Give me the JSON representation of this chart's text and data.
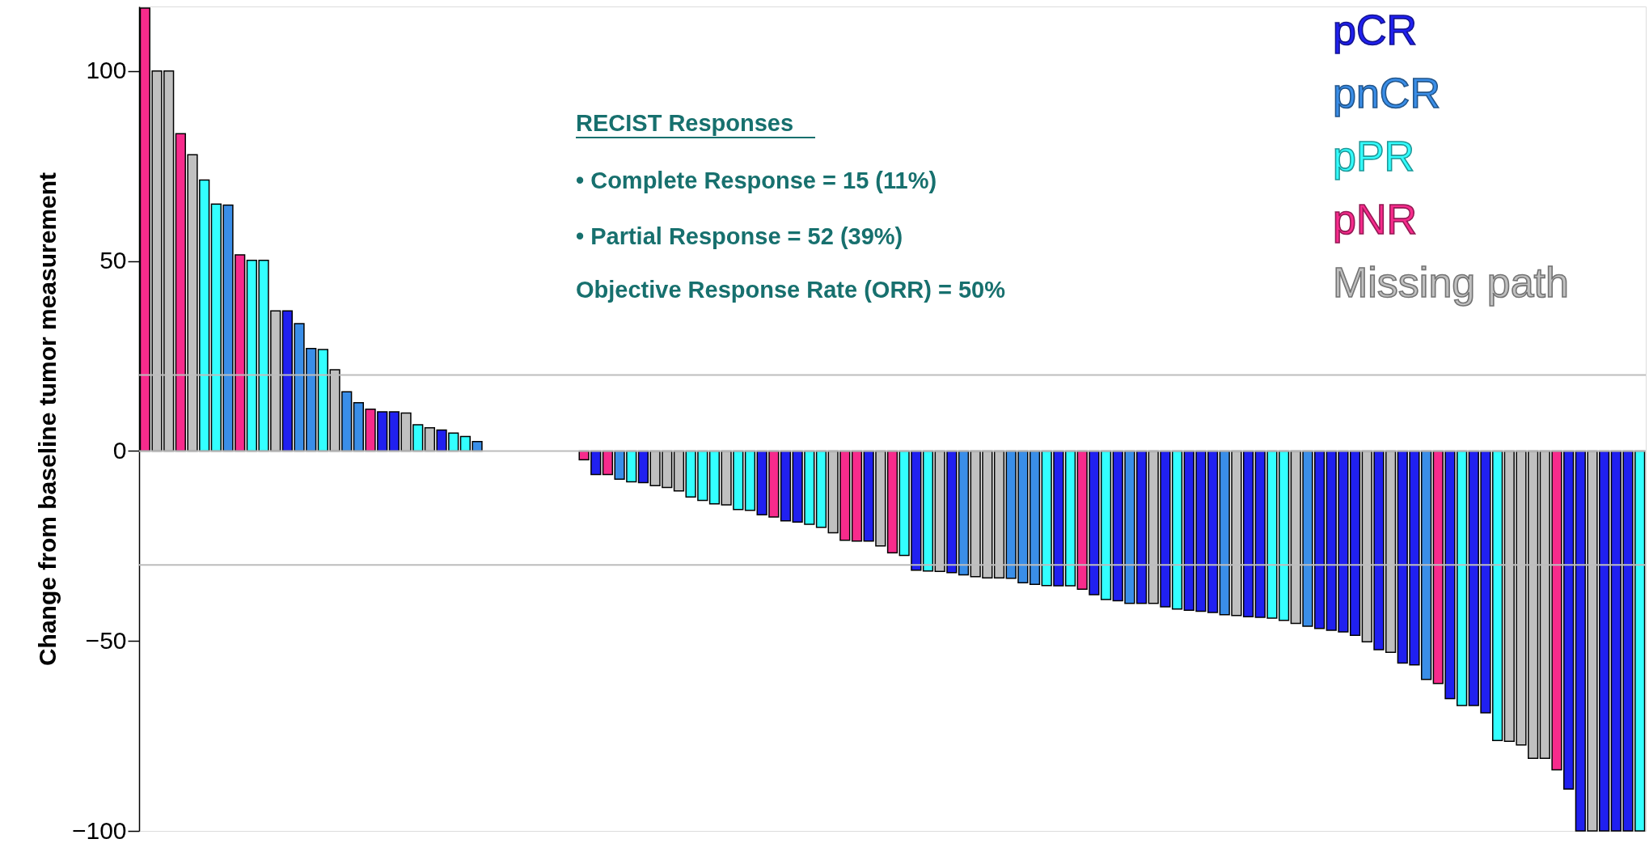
{
  "chart_data": {
    "type": "bar",
    "ylabel": "Change from baseline tumor measurement",
    "categories": [
      null,
      null,
      null,
      null,
      null,
      null,
      null,
      null,
      null,
      null,
      null,
      null,
      null,
      null,
      null,
      null,
      null,
      null,
      null,
      null,
      null,
      null,
      null,
      null,
      null,
      null,
      null,
      null,
      null,
      null,
      null,
      null,
      null,
      null,
      null,
      null,
      null,
      null,
      null,
      null,
      null,
      null,
      null,
      null,
      null,
      null,
      null,
      null,
      null,
      null,
      null,
      null,
      null,
      null,
      null,
      null,
      null,
      null,
      null,
      null,
      null,
      null,
      null,
      null,
      null,
      null,
      null,
      null,
      null,
      null,
      null,
      null,
      null,
      null,
      null,
      null,
      null,
      null,
      null,
      null,
      null,
      null,
      null,
      null,
      null,
      null,
      null,
      null,
      null,
      null,
      null,
      null,
      null,
      null,
      null,
      null,
      null,
      null,
      null,
      null,
      null,
      null,
      null,
      null,
      null,
      null,
      null,
      null,
      null,
      null,
      null,
      null,
      null,
      null,
      null,
      null,
      null,
      null,
      null,
      null,
      null,
      null,
      null,
      null,
      null,
      null,
      null
    ],
    "series": [
      {
        "name": "pCR",
        "color": "#2020f0",
        "values": [
          null,
          null,
          null,
          null,
          null,
          null,
          null,
          null,
          null,
          null,
          null,
          null,
          36.9,
          null,
          null,
          null,
          null,
          null,
          null,
          null,
          10.3,
          10.3,
          null,
          null,
          null,
          5.5,
          null,
          null,
          null,
          null,
          null,
          null,
          null,
          null,
          null,
          null,
          null,
          null,
          -6.2,
          null,
          null,
          null,
          -8.3,
          null,
          null,
          null,
          null,
          null,
          null,
          null,
          null,
          null,
          -16.8,
          null,
          -18.4,
          -18.7,
          null,
          null,
          null,
          null,
          null,
          -23.7,
          null,
          null,
          null,
          -31.4,
          null,
          null,
          -32,
          null,
          null,
          null,
          null,
          null,
          null,
          null,
          null,
          -35.5,
          null,
          null,
          -37.8,
          null,
          -39.4,
          null,
          -40.1,
          null,
          -41,
          null,
          -41.9,
          -42.2,
          -42.5,
          null,
          null,
          -43.6,
          -43.8,
          null,
          null,
          null,
          null,
          -46.7,
          -47.2,
          -47.6,
          -48.5,
          null,
          -52.3,
          null,
          -55.8,
          -56.3,
          null,
          null,
          -65.2,
          null,
          -67,
          -68.9,
          null,
          null,
          null,
          null,
          null,
          null,
          -89,
          -100,
          null,
          -100,
          -100,
          -100,
          null
        ]
      },
      {
        "name": "pnCR",
        "color": "#3a8ee8",
        "values": [
          null,
          null,
          null,
          null,
          null,
          null,
          null,
          64.7,
          null,
          null,
          null,
          null,
          null,
          33.5,
          27,
          null,
          null,
          15.6,
          12.7,
          null,
          null,
          null,
          null,
          null,
          null,
          null,
          null,
          null,
          2.5,
          null,
          null,
          null,
          null,
          null,
          null,
          null,
          null,
          null,
          null,
          null,
          -7.4,
          null,
          null,
          null,
          null,
          null,
          null,
          null,
          null,
          null,
          null,
          null,
          null,
          null,
          null,
          null,
          null,
          null,
          null,
          null,
          null,
          null,
          null,
          null,
          null,
          null,
          null,
          null,
          null,
          -32.6,
          null,
          null,
          null,
          -33.5,
          -34.7,
          -35.1,
          null,
          null,
          null,
          null,
          null,
          null,
          null,
          -40.1,
          null,
          null,
          null,
          null,
          null,
          null,
          null,
          -43.1,
          null,
          null,
          null,
          null,
          null,
          null,
          -46.1,
          null,
          null,
          null,
          null,
          null,
          null,
          null,
          null,
          null,
          -60.1,
          null,
          null,
          null,
          null,
          null,
          null,
          null,
          null,
          null,
          null,
          null,
          null,
          null,
          null,
          null,
          null,
          null,
          null
        ]
      },
      {
        "name": "pPR",
        "color": "#33ffff",
        "values": [
          null,
          null,
          null,
          null,
          null,
          71.3,
          65,
          null,
          null,
          50.2,
          50.2,
          null,
          null,
          null,
          null,
          26.7,
          null,
          null,
          null,
          null,
          null,
          null,
          null,
          6.9,
          null,
          null,
          4.7,
          3.8,
          null,
          null,
          null,
          null,
          null,
          null,
          null,
          null,
          null,
          null,
          null,
          null,
          null,
          -8.1,
          null,
          null,
          null,
          null,
          -12.1,
          -13,
          -13.9,
          null,
          -15.4,
          -15.6,
          null,
          null,
          null,
          null,
          -19.3,
          -20.1,
          null,
          null,
          null,
          null,
          null,
          null,
          -27.5,
          null,
          -31.6,
          null,
          null,
          null,
          null,
          null,
          null,
          null,
          null,
          null,
          -35.4,
          null,
          -35.5,
          null,
          null,
          -39.1,
          null,
          null,
          null,
          null,
          null,
          -41.6,
          null,
          null,
          null,
          null,
          null,
          null,
          null,
          -44,
          -44.6,
          null,
          null,
          null,
          null,
          null,
          null,
          null,
          null,
          null,
          null,
          null,
          null,
          null,
          null,
          -67,
          null,
          null,
          -76.2,
          null,
          null,
          null,
          null,
          null,
          null,
          null,
          null,
          null,
          null,
          null,
          -100
        ]
      },
      {
        "name": "pNR",
        "color": "#f72b8c",
        "values": [
          116.6,
          null,
          null,
          83.5,
          null,
          null,
          null,
          null,
          51.6,
          null,
          null,
          null,
          null,
          null,
          null,
          null,
          null,
          null,
          null,
          11,
          null,
          null,
          null,
          null,
          null,
          null,
          null,
          null,
          null,
          null,
          null,
          null,
          null,
          null,
          null,
          null,
          null,
          -2.3,
          null,
          -6.2,
          null,
          null,
          null,
          null,
          null,
          null,
          null,
          null,
          null,
          null,
          null,
          null,
          null,
          -17.4,
          null,
          null,
          null,
          null,
          null,
          -23.5,
          -23.7,
          null,
          null,
          -26.8,
          null,
          null,
          null,
          null,
          null,
          null,
          null,
          null,
          null,
          null,
          null,
          null,
          null,
          null,
          null,
          -36.4,
          null,
          null,
          null,
          null,
          null,
          null,
          null,
          null,
          null,
          null,
          null,
          null,
          null,
          null,
          null,
          null,
          null,
          null,
          null,
          null,
          null,
          null,
          null,
          null,
          null,
          null,
          null,
          null,
          null,
          -61.2,
          null,
          null,
          null,
          null,
          null,
          null,
          null,
          null,
          null,
          -83.9,
          null,
          null,
          null,
          null,
          null,
          null,
          null
        ]
      },
      {
        "name": "Missing path",
        "color": "#c0c0c0",
        "values": [
          null,
          100,
          100,
          null,
          78,
          null,
          null,
          null,
          null,
          null,
          null,
          36.9,
          null,
          null,
          null,
          null,
          21.4,
          null,
          null,
          null,
          null,
          null,
          10,
          null,
          6.1,
          null,
          null,
          null,
          null,
          null,
          null,
          null,
          null,
          null,
          null,
          null,
          null,
          null,
          null,
          null,
          null,
          null,
          null,
          -9.1,
          -9.6,
          -10.5,
          null,
          null,
          null,
          -14.2,
          null,
          null,
          null,
          null,
          null,
          null,
          null,
          null,
          -21.5,
          null,
          null,
          null,
          -25,
          null,
          null,
          null,
          null,
          -31.7,
          null,
          null,
          -33.1,
          -33.4,
          -33.4,
          null,
          null,
          null,
          null,
          null,
          null,
          null,
          null,
          null,
          null,
          null,
          null,
          -40.1,
          null,
          null,
          null,
          null,
          null,
          null,
          -43.3,
          null,
          null,
          null,
          null,
          -45.4,
          null,
          null,
          null,
          null,
          null,
          -50.2,
          null,
          -53,
          null,
          null,
          null,
          null,
          null,
          null,
          null,
          null,
          null,
          -76.4,
          -77.4,
          -80.9,
          -80.9,
          null,
          null,
          null,
          -100,
          null,
          null,
          null,
          null
        ]
      }
    ],
    "ylim": [
      -100,
      117
    ],
    "yticks": [
      -100,
      -50,
      0,
      50,
      100
    ],
    "ref_lines": [
      {
        "axis": "y",
        "value": 20,
        "color": "#bdbdbd"
      },
      {
        "axis": "y",
        "value": 0,
        "color": "#bdbdbd"
      },
      {
        "axis": "y",
        "value": -30,
        "color": "#bdbdbd"
      }
    ],
    "annotations": [
      "RECIST Responses",
      "• Complete Response = 15 (11%)",
      "• Partial Response = 52 (39%)",
      "Objective Response Rate (ORR) = 50%"
    ],
    "legend": "top right",
    "tick_labels": "y"
  }
}
